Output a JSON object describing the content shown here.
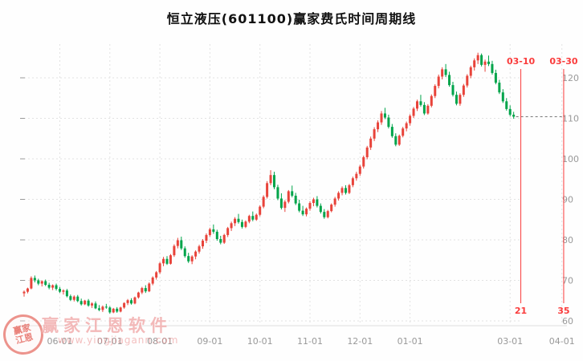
{
  "title": "恒立液压(601100)赢家费氏时间周期线",
  "watermark": {
    "brand": "赢家江恩软件",
    "url": "www.yingjiagann.com",
    "seal_text": "赢家江恩"
  },
  "chart_data": {
    "type": "candlestick",
    "title": "恒立液压(601100)赢家费氏时间周期线",
    "ylabel": "",
    "xlabel": "",
    "ylim": [
      58,
      128
    ],
    "y_ticks": [
      60,
      70,
      80,
      90,
      100,
      110,
      120
    ],
    "grid": true,
    "x_tick_labels": [
      {
        "label": "06-01",
        "index": 10
      },
      {
        "label": "07-01",
        "index": 24
      },
      {
        "label": "08-01",
        "index": 38
      },
      {
        "label": "09-01",
        "index": 52
      },
      {
        "label": "10-01",
        "index": 66
      },
      {
        "label": "11-01",
        "index": 80
      },
      {
        "label": "12-01",
        "index": 94
      },
      {
        "label": "01-01",
        "index": 108
      },
      {
        "label": "03-01",
        "index": 136
      },
      {
        "label": "04-01",
        "index": 150.5
      }
    ],
    "cycle_lines": [
      {
        "date_label": "03-10",
        "count_label": "21",
        "index": 139
      },
      {
        "date_label": "03-30",
        "count_label": "35",
        "index": 151
      }
    ],
    "last_price": 110.4,
    "colors": {
      "up": "#e8433a",
      "down": "#00a44a",
      "grid": "#e2e2e2",
      "axis_text": "#999999",
      "cycle": "#fa3c3c",
      "last_price_line": "#777777"
    },
    "candle_format": [
      "open",
      "high",
      "low",
      "close"
    ],
    "candles": [
      [
        66.8,
        67.5,
        66.0,
        67.2
      ],
      [
        67.2,
        68.2,
        66.8,
        68.0
      ],
      [
        68.0,
        71.0,
        67.8,
        70.6
      ],
      [
        70.6,
        71.2,
        69.5,
        70.0
      ],
      [
        70.0,
        70.4,
        68.8,
        69.2
      ],
      [
        69.2,
        70.0,
        68.5,
        69.8
      ],
      [
        69.8,
        70.2,
        68.6,
        68.9
      ],
      [
        68.9,
        69.4,
        67.8,
        68.2
      ],
      [
        68.2,
        69.0,
        67.6,
        68.8
      ],
      [
        68.8,
        69.2,
        67.5,
        67.9
      ],
      [
        67.9,
        68.4,
        66.9,
        67.2
      ],
      [
        67.2,
        67.8,
        66.5,
        67.5
      ],
      [
        67.5,
        67.9,
        65.8,
        66.1
      ],
      [
        66.1,
        66.5,
        64.9,
        65.2
      ],
      [
        65.2,
        66.3,
        64.8,
        66.0
      ],
      [
        66.0,
        66.4,
        64.6,
        64.9
      ],
      [
        64.9,
        65.5,
        63.8,
        64.1
      ],
      [
        64.1,
        65.2,
        63.9,
        65.0
      ],
      [
        65.0,
        65.4,
        63.5,
        63.8
      ],
      [
        63.8,
        64.6,
        63.2,
        64.3
      ],
      [
        64.3,
        64.8,
        62.9,
        63.1
      ],
      [
        63.1,
        63.9,
        62.4,
        62.7
      ],
      [
        62.7,
        63.8,
        62.2,
        63.5
      ],
      [
        63.5,
        64.2,
        63.0,
        63.3
      ],
      [
        63.3,
        63.6,
        61.8,
        62.1
      ],
      [
        62.1,
        63.2,
        61.9,
        63.0
      ],
      [
        63.0,
        63.4,
        62.0,
        62.3
      ],
      [
        62.3,
        63.5,
        62.1,
        63.3
      ],
      [
        63.3,
        64.6,
        63.0,
        64.4
      ],
      [
        64.4,
        65.4,
        63.9,
        65.1
      ],
      [
        65.1,
        65.6,
        64.0,
        64.3
      ],
      [
        64.3,
        66.0,
        64.1,
        65.8
      ],
      [
        65.8,
        67.2,
        65.5,
        67.0
      ],
      [
        67.0,
        68.4,
        66.6,
        68.1
      ],
      [
        68.1,
        68.8,
        66.9,
        67.3
      ],
      [
        67.3,
        69.5,
        67.1,
        69.2
      ],
      [
        69.2,
        71.0,
        68.8,
        70.7
      ],
      [
        70.7,
        72.3,
        70.2,
        72.0
      ],
      [
        72.0,
        74.5,
        71.6,
        74.2
      ],
      [
        74.2,
        75.8,
        73.5,
        75.3
      ],
      [
        75.3,
        76.0,
        73.8,
        74.1
      ],
      [
        74.1,
        76.5,
        73.9,
        76.2
      ],
      [
        76.2,
        78.9,
        75.8,
        78.5
      ],
      [
        78.5,
        80.5,
        77.9,
        79.9
      ],
      [
        79.9,
        80.8,
        77.5,
        77.9
      ],
      [
        77.9,
        78.4,
        75.6,
        76.0
      ],
      [
        76.0,
        76.8,
        74.3,
        74.7
      ],
      [
        74.7,
        76.2,
        74.0,
        75.9
      ],
      [
        75.9,
        77.4,
        75.2,
        77.1
      ],
      [
        77.1,
        78.8,
        76.6,
        78.4
      ],
      [
        78.4,
        80.2,
        77.8,
        79.8
      ],
      [
        79.8,
        81.6,
        79.2,
        81.2
      ],
      [
        81.2,
        83.0,
        80.8,
        82.6
      ],
      [
        82.6,
        83.8,
        81.5,
        82.0
      ],
      [
        82.0,
        82.5,
        79.8,
        80.2
      ],
      [
        80.2,
        81.0,
        78.9,
        79.3
      ],
      [
        79.3,
        81.5,
        79.0,
        81.2
      ],
      [
        81.2,
        83.2,
        80.7,
        82.9
      ],
      [
        82.9,
        84.5,
        82.2,
        84.1
      ],
      [
        84.1,
        85.6,
        83.4,
        85.2
      ],
      [
        85.2,
        86.4,
        84.0,
        84.4
      ],
      [
        84.4,
        85.0,
        82.8,
        83.2
      ],
      [
        83.2,
        84.8,
        82.9,
        84.5
      ],
      [
        84.5,
        86.2,
        84.1,
        85.9
      ],
      [
        85.9,
        87.0,
        84.6,
        85.0
      ],
      [
        85.0,
        86.5,
        84.7,
        86.2
      ],
      [
        86.2,
        88.5,
        85.8,
        88.2
      ],
      [
        88.2,
        91.0,
        87.8,
        90.6
      ],
      [
        90.6,
        94.5,
        90.2,
        94.0
      ],
      [
        94.0,
        97.2,
        93.5,
        96.0
      ],
      [
        96.0,
        96.8,
        92.5,
        93.0
      ],
      [
        93.0,
        93.6,
        89.8,
        90.2
      ],
      [
        90.2,
        91.5,
        87.5,
        87.9
      ],
      [
        87.9,
        89.8,
        86.9,
        89.4
      ],
      [
        89.4,
        92.3,
        89.0,
        92.0
      ],
      [
        92.0,
        93.4,
        90.5,
        90.9
      ],
      [
        90.9,
        91.6,
        88.6,
        89.0
      ],
      [
        89.0,
        89.9,
        86.8,
        87.2
      ],
      [
        87.2,
        88.4,
        85.9,
        86.3
      ],
      [
        86.3,
        88.0,
        85.8,
        87.7
      ],
      [
        87.7,
        89.5,
        87.2,
        89.1
      ],
      [
        89.1,
        90.4,
        88.3,
        90.0
      ],
      [
        90.0,
        90.8,
        88.0,
        88.4
      ],
      [
        88.4,
        89.0,
        86.5,
        86.9
      ],
      [
        86.9,
        87.6,
        85.2,
        85.6
      ],
      [
        85.6,
        87.4,
        85.3,
        87.1
      ],
      [
        87.1,
        89.0,
        86.8,
        88.7
      ],
      [
        88.7,
        90.6,
        88.2,
        90.2
      ],
      [
        90.2,
        92.0,
        89.7,
        91.6
      ],
      [
        91.6,
        93.2,
        91.0,
        92.8
      ],
      [
        92.8,
        93.5,
        91.2,
        91.6
      ],
      [
        91.6,
        93.8,
        91.3,
        93.5
      ],
      [
        93.5,
        95.6,
        93.0,
        95.2
      ],
      [
        95.2,
        96.8,
        94.6,
        96.3
      ],
      [
        96.3,
        98.5,
        95.8,
        98.1
      ],
      [
        98.1,
        100.8,
        97.6,
        100.4
      ],
      [
        100.4,
        103.2,
        99.9,
        102.8
      ],
      [
        102.8,
        105.5,
        102.2,
        105.0
      ],
      [
        105.0,
        107.8,
        104.4,
        107.3
      ],
      [
        107.3,
        109.5,
        106.6,
        109.0
      ],
      [
        109.0,
        111.8,
        108.4,
        111.2
      ],
      [
        111.2,
        112.6,
        109.8,
        110.2
      ],
      [
        110.2,
        110.9,
        107.5,
        107.9
      ],
      [
        107.9,
        108.6,
        105.2,
        105.6
      ],
      [
        105.6,
        106.3,
        103.1,
        103.5
      ],
      [
        103.5,
        106.0,
        103.2,
        105.7
      ],
      [
        105.7,
        107.9,
        105.3,
        107.5
      ],
      [
        107.5,
        109.2,
        106.8,
        108.8
      ],
      [
        108.8,
        111.0,
        108.2,
        110.6
      ],
      [
        110.6,
        112.8,
        110.1,
        112.4
      ],
      [
        112.4,
        114.6,
        111.8,
        114.2
      ],
      [
        114.2,
        115.8,
        112.9,
        113.3
      ],
      [
        113.3,
        114.0,
        110.8,
        111.2
      ],
      [
        111.2,
        113.5,
        110.9,
        113.1
      ],
      [
        113.1,
        115.9,
        112.7,
        115.5
      ],
      [
        115.5,
        118.4,
        115.0,
        118.0
      ],
      [
        118.0,
        120.8,
        117.4,
        120.3
      ],
      [
        120.3,
        122.6,
        119.6,
        122.1
      ],
      [
        122.1,
        123.4,
        120.2,
        120.7
      ],
      [
        120.7,
        121.5,
        117.8,
        118.2
      ],
      [
        118.2,
        119.0,
        115.4,
        115.8
      ],
      [
        115.8,
        116.6,
        113.2,
        113.6
      ],
      [
        113.6,
        116.2,
        113.1,
        115.8
      ],
      [
        115.8,
        118.5,
        115.3,
        118.1
      ],
      [
        118.1,
        120.9,
        117.6,
        120.5
      ],
      [
        120.5,
        123.0,
        119.9,
        122.6
      ],
      [
        122.6,
        124.8,
        121.8,
        124.3
      ],
      [
        124.3,
        126.2,
        123.4,
        125.6
      ],
      [
        125.6,
        126.0,
        122.8,
        123.2
      ],
      [
        123.2,
        124.5,
        121.5,
        124.0
      ],
      [
        124.0,
        125.5,
        122.9,
        123.4
      ],
      [
        123.4,
        124.2,
        120.8,
        121.2
      ],
      [
        121.2,
        122.0,
        118.4,
        118.8
      ],
      [
        118.8,
        119.5,
        116.0,
        116.4
      ],
      [
        116.4,
        117.2,
        113.8,
        114.2
      ],
      [
        114.2,
        115.0,
        111.9,
        112.3
      ],
      [
        112.3,
        113.2,
        110.5,
        110.9
      ],
      [
        110.9,
        111.6,
        109.9,
        110.4
      ]
    ]
  }
}
